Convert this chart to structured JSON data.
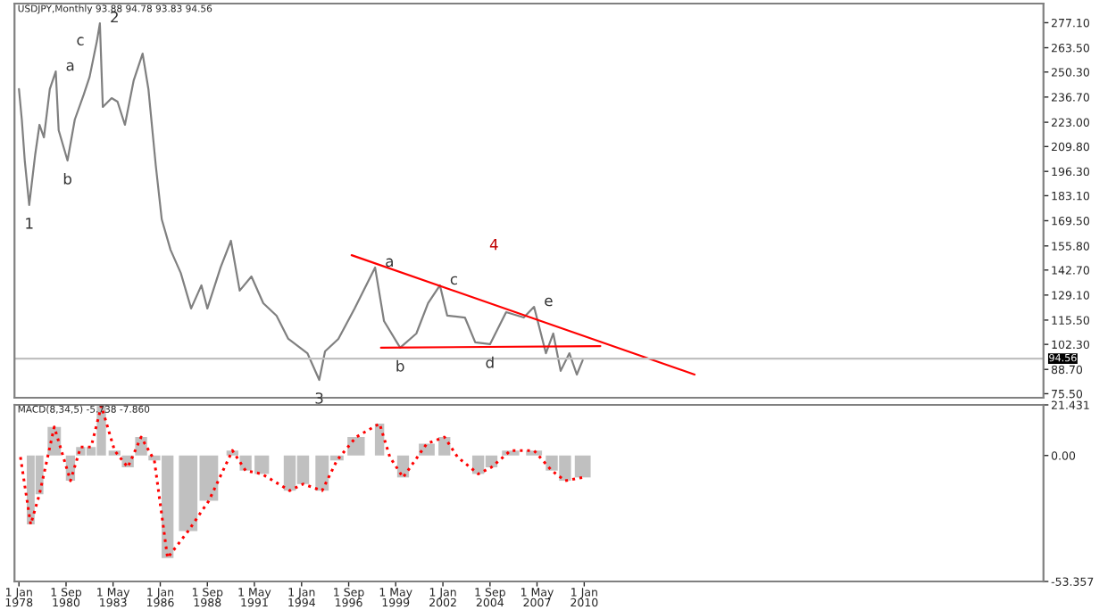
{
  "chart_data": [
    {
      "type": "line",
      "title": "USDJPY,Monthly 93.88 94.78 93.83 94.56",
      "legend": false,
      "grid": false,
      "tick_labels": "y",
      "xlim": [
        "1977-10",
        "2036-01"
      ],
      "ylim": [
        73.3,
        287.5
      ],
      "yticks": [
        {
          "value": 277.1,
          "label": "277.10"
        },
        {
          "value": 263.5,
          "label": "263.50"
        },
        {
          "value": 250.3,
          "label": "250.30"
        },
        {
          "value": 236.7,
          "label": "236.70"
        },
        {
          "value": 223.0,
          "label": "223.00"
        },
        {
          "value": 209.8,
          "label": "209.80"
        },
        {
          "value": 196.3,
          "label": "196.30"
        },
        {
          "value": 183.1,
          "label": "183.10"
        },
        {
          "value": 169.5,
          "label": "169.50"
        },
        {
          "value": 155.8,
          "label": "155.80"
        },
        {
          "value": 142.7,
          "label": "142.70"
        },
        {
          "value": 129.1,
          "label": "129.10"
        },
        {
          "value": 115.5,
          "label": "115.50"
        },
        {
          "value": 102.3,
          "label": "102.30"
        },
        {
          "value": 88.7,
          "label": "88.70"
        },
        {
          "value": 75.5,
          "label": "75.50"
        }
      ],
      "ref_lines": [
        {
          "axis": "y",
          "value": 94.56,
          "label": "94.56",
          "color": "#c0c0c0"
        }
      ],
      "series": [
        {
          "color": "#808080",
          "x": [
            "1978-01",
            "1978-03",
            "1978-05",
            "1978-08",
            "1978-12",
            "1979-03",
            "1979-06",
            "1979-10",
            "1980-02",
            "1980-04",
            "1980-10",
            "1981-03",
            "1981-09",
            "1982-01",
            "1982-06",
            "1982-08",
            "1982-10",
            "1983-04",
            "1983-08",
            "1984-01",
            "1984-07",
            "1985-01",
            "1985-05",
            "1985-10",
            "1986-02",
            "1986-08",
            "1987-03",
            "1987-10",
            "1988-05",
            "1988-09",
            "1989-06",
            "1990-01",
            "1990-07",
            "1991-03",
            "1991-11",
            "1992-08",
            "1993-04",
            "1994-05",
            "1995-01",
            "1995-05",
            "1996-02",
            "1997-01",
            "1998-03",
            "1998-09",
            "1999-08",
            "2000-07",
            "2001-03",
            "2001-11",
            "2002-04",
            "2003-04",
            "2003-11",
            "2004-09",
            "2005-08",
            "2006-08",
            "2007-03",
            "2007-11",
            "2008-04",
            "2008-09",
            "2009-03",
            "2009-08",
            "2009-12"
          ],
          "values": [
            241.0,
            224.5,
            202.2,
            178.0,
            205.1,
            221.6,
            214.8,
            241.0,
            250.6,
            218.7,
            202.2,
            224.5,
            238.0,
            247.7,
            267.1,
            276.8,
            231.3,
            236.1,
            234.2,
            221.6,
            245.8,
            260.3,
            241.0,
            199.3,
            170.2,
            153.7,
            141.1,
            121.8,
            134.4,
            121.8,
            144.1,
            158.6,
            131.5,
            139.2,
            124.7,
            117.9,
            105.3,
            97.5,
            83.0,
            98.5,
            105.3,
            121.8,
            144.1,
            115.0,
            100.5,
            108.2,
            124.7,
            134.4,
            117.9,
            116.9,
            103.4,
            102.4,
            119.8,
            116.9,
            122.7,
            97.5,
            108.2,
            87.9,
            97.5,
            85.9,
            93.7
          ]
        },
        {
          "type": "line",
          "color": "#ff0000",
          "x": [
            "1996-11",
            "2016-04"
          ],
          "values": [
            150.8,
            85.9
          ]
        },
        {
          "type": "line",
          "color": "#ff0000",
          "x": [
            "1998-07",
            "2010-12"
          ],
          "values": [
            100.5,
            101.4
          ]
        }
      ],
      "annotations": [
        {
          "text": "1",
          "x": "1978-08",
          "y": 178.0
        },
        {
          "text": "a",
          "x": "1980-02",
          "y": 250.6
        },
        {
          "text": "b",
          "x": "1980-10",
          "y": 202.2
        },
        {
          "text": "c",
          "x": "1982-06",
          "y": 267.1
        },
        {
          "text": "2",
          "x": "1982-08",
          "y": 276.8
        },
        {
          "text": "3",
          "x": "1995-01",
          "y": 83.0
        },
        {
          "text": "a",
          "x": "1998-03",
          "y": 144.1
        },
        {
          "text": "b",
          "x": "1999-08",
          "y": 100.5
        },
        {
          "text": "c",
          "x": "2001-11",
          "y": 134.4
        },
        {
          "text": "d",
          "x": "2004-09",
          "y": 102.4
        },
        {
          "text": "e",
          "x": "2007-03",
          "y": 122.7
        },
        "4"
      ]
    },
    {
      "type": "bar",
      "title": "MACD(8,34,5) -5.738 -7.860",
      "legend": false,
      "grid": false,
      "xlim": [
        "1977-10",
        "2036-01"
      ],
      "xticks": [
        {
          "value": "1978-01-01",
          "label": "1 Jan 1978"
        },
        {
          "value": "1980-09-01",
          "label": "1 Sep 1980"
        },
        {
          "value": "1983-05-01",
          "label": "1 May 1983"
        },
        {
          "value": "1986-01-01",
          "label": "1 Jan 1986"
        },
        {
          "value": "1988-09-01",
          "label": "1 Sep 1988"
        },
        {
          "value": "1991-05-01",
          "label": "1 May 1991"
        },
        {
          "value": "1994-01-01",
          "label": "1 Jan 1994"
        },
        {
          "value": "1996-09-01",
          "label": "1 Sep 1996"
        },
        {
          "value": "1999-05-01",
          "label": "1 May 1999"
        },
        {
          "value": "2002-01-01",
          "label": "1 Jan 2002"
        },
        {
          "value": "2004-09-01",
          "label": "1 Sep 2004"
        },
        {
          "value": "2007-05-01",
          "label": "1 May 2007"
        },
        {
          "value": "2010-01-01",
          "label": "1 Jan 2010"
        }
      ],
      "ylim": [
        -53.357,
        21.431
      ],
      "yticks": [
        {
          "value": 21.431,
          "label": "21.431"
        },
        {
          "value": 0,
          "label": "0.00"
        },
        {
          "value": -53.357,
          "label": "-53.357"
        }
      ],
      "series": [
        {
          "type": "bar",
          "color": "#c0c0c0",
          "x": [
            "1978-09",
            "1979-03",
            "1980-01",
            "1980-12",
            "1981-07",
            "1982-02",
            "1982-09",
            "1983-06",
            "1984-03",
            "1984-12",
            "1985-09",
            "1986-06",
            "1987-08",
            "1988-10",
            "1990-02",
            "1990-11",
            "1991-10",
            "1993-05",
            "1994-02",
            "1995-03",
            "1996-01",
            "1997-02",
            "1998-06",
            "1999-01",
            "1999-10",
            "2001-02",
            "2002-02",
            "2002-11",
            "2004-01",
            "2004-10",
            "2005-11",
            "2007-03",
            "2008-03",
            "2008-12",
            "2009-12"
          ],
          "values": [
            -29.2,
            -16.4,
            12.1,
            -10.7,
            3.6,
            3.6,
            21.0,
            2.1,
            -5.0,
            7.8,
            -2.1,
            -43.4,
            -32.0,
            -19.2,
            2.1,
            -6.4,
            -7.8,
            -14.9,
            -12.1,
            -14.9,
            -2.1,
            7.8,
            13.5,
            null,
            -9.3,
            5.0,
            7.8,
            null,
            -7.8,
            -5.0,
            2.1,
            2.1,
            -6.4,
            -10.7,
            -9.3
          ]
        },
        {
          "type": "line",
          "color": "#ff0000",
          "line_style": "dotted",
          "x": [
            "1978-02",
            "1978-09",
            "1979-03",
            "1980-01",
            "1980-12",
            "1981-07",
            "1982-02",
            "1982-09",
            "1983-06",
            "1984-03",
            "1984-12",
            "1985-09",
            "1986-06",
            "1987-08",
            "1988-10",
            "1990-02",
            "1990-11",
            "1991-10",
            "1993-05",
            "1994-02",
            "1995-03",
            "1996-01",
            "1997-02",
            "1998-06",
            "1999-01",
            "1999-10",
            "2001-02",
            "2002-02",
            "2002-11",
            "2004-01",
            "2004-10",
            "2005-11",
            "2007-03",
            "2008-03",
            "2008-12",
            "2009-12"
          ],
          "values": [
            -0.7,
            -29.2,
            -16.4,
            12.1,
            -10.7,
            3.6,
            3.6,
            21.0,
            2.1,
            -5.0,
            7.8,
            -2.1,
            -43.4,
            -32.0,
            -19.2,
            2.1,
            -6.4,
            -7.8,
            -14.9,
            -12.1,
            -14.9,
            -2.1,
            7.8,
            13.5,
            -0.7,
            -9.3,
            5.0,
            7.8,
            -0.7,
            -7.8,
            -5.0,
            2.1,
            2.1,
            -6.4,
            -10.7,
            -9.3
          ]
        }
      ]
    }
  ]
}
